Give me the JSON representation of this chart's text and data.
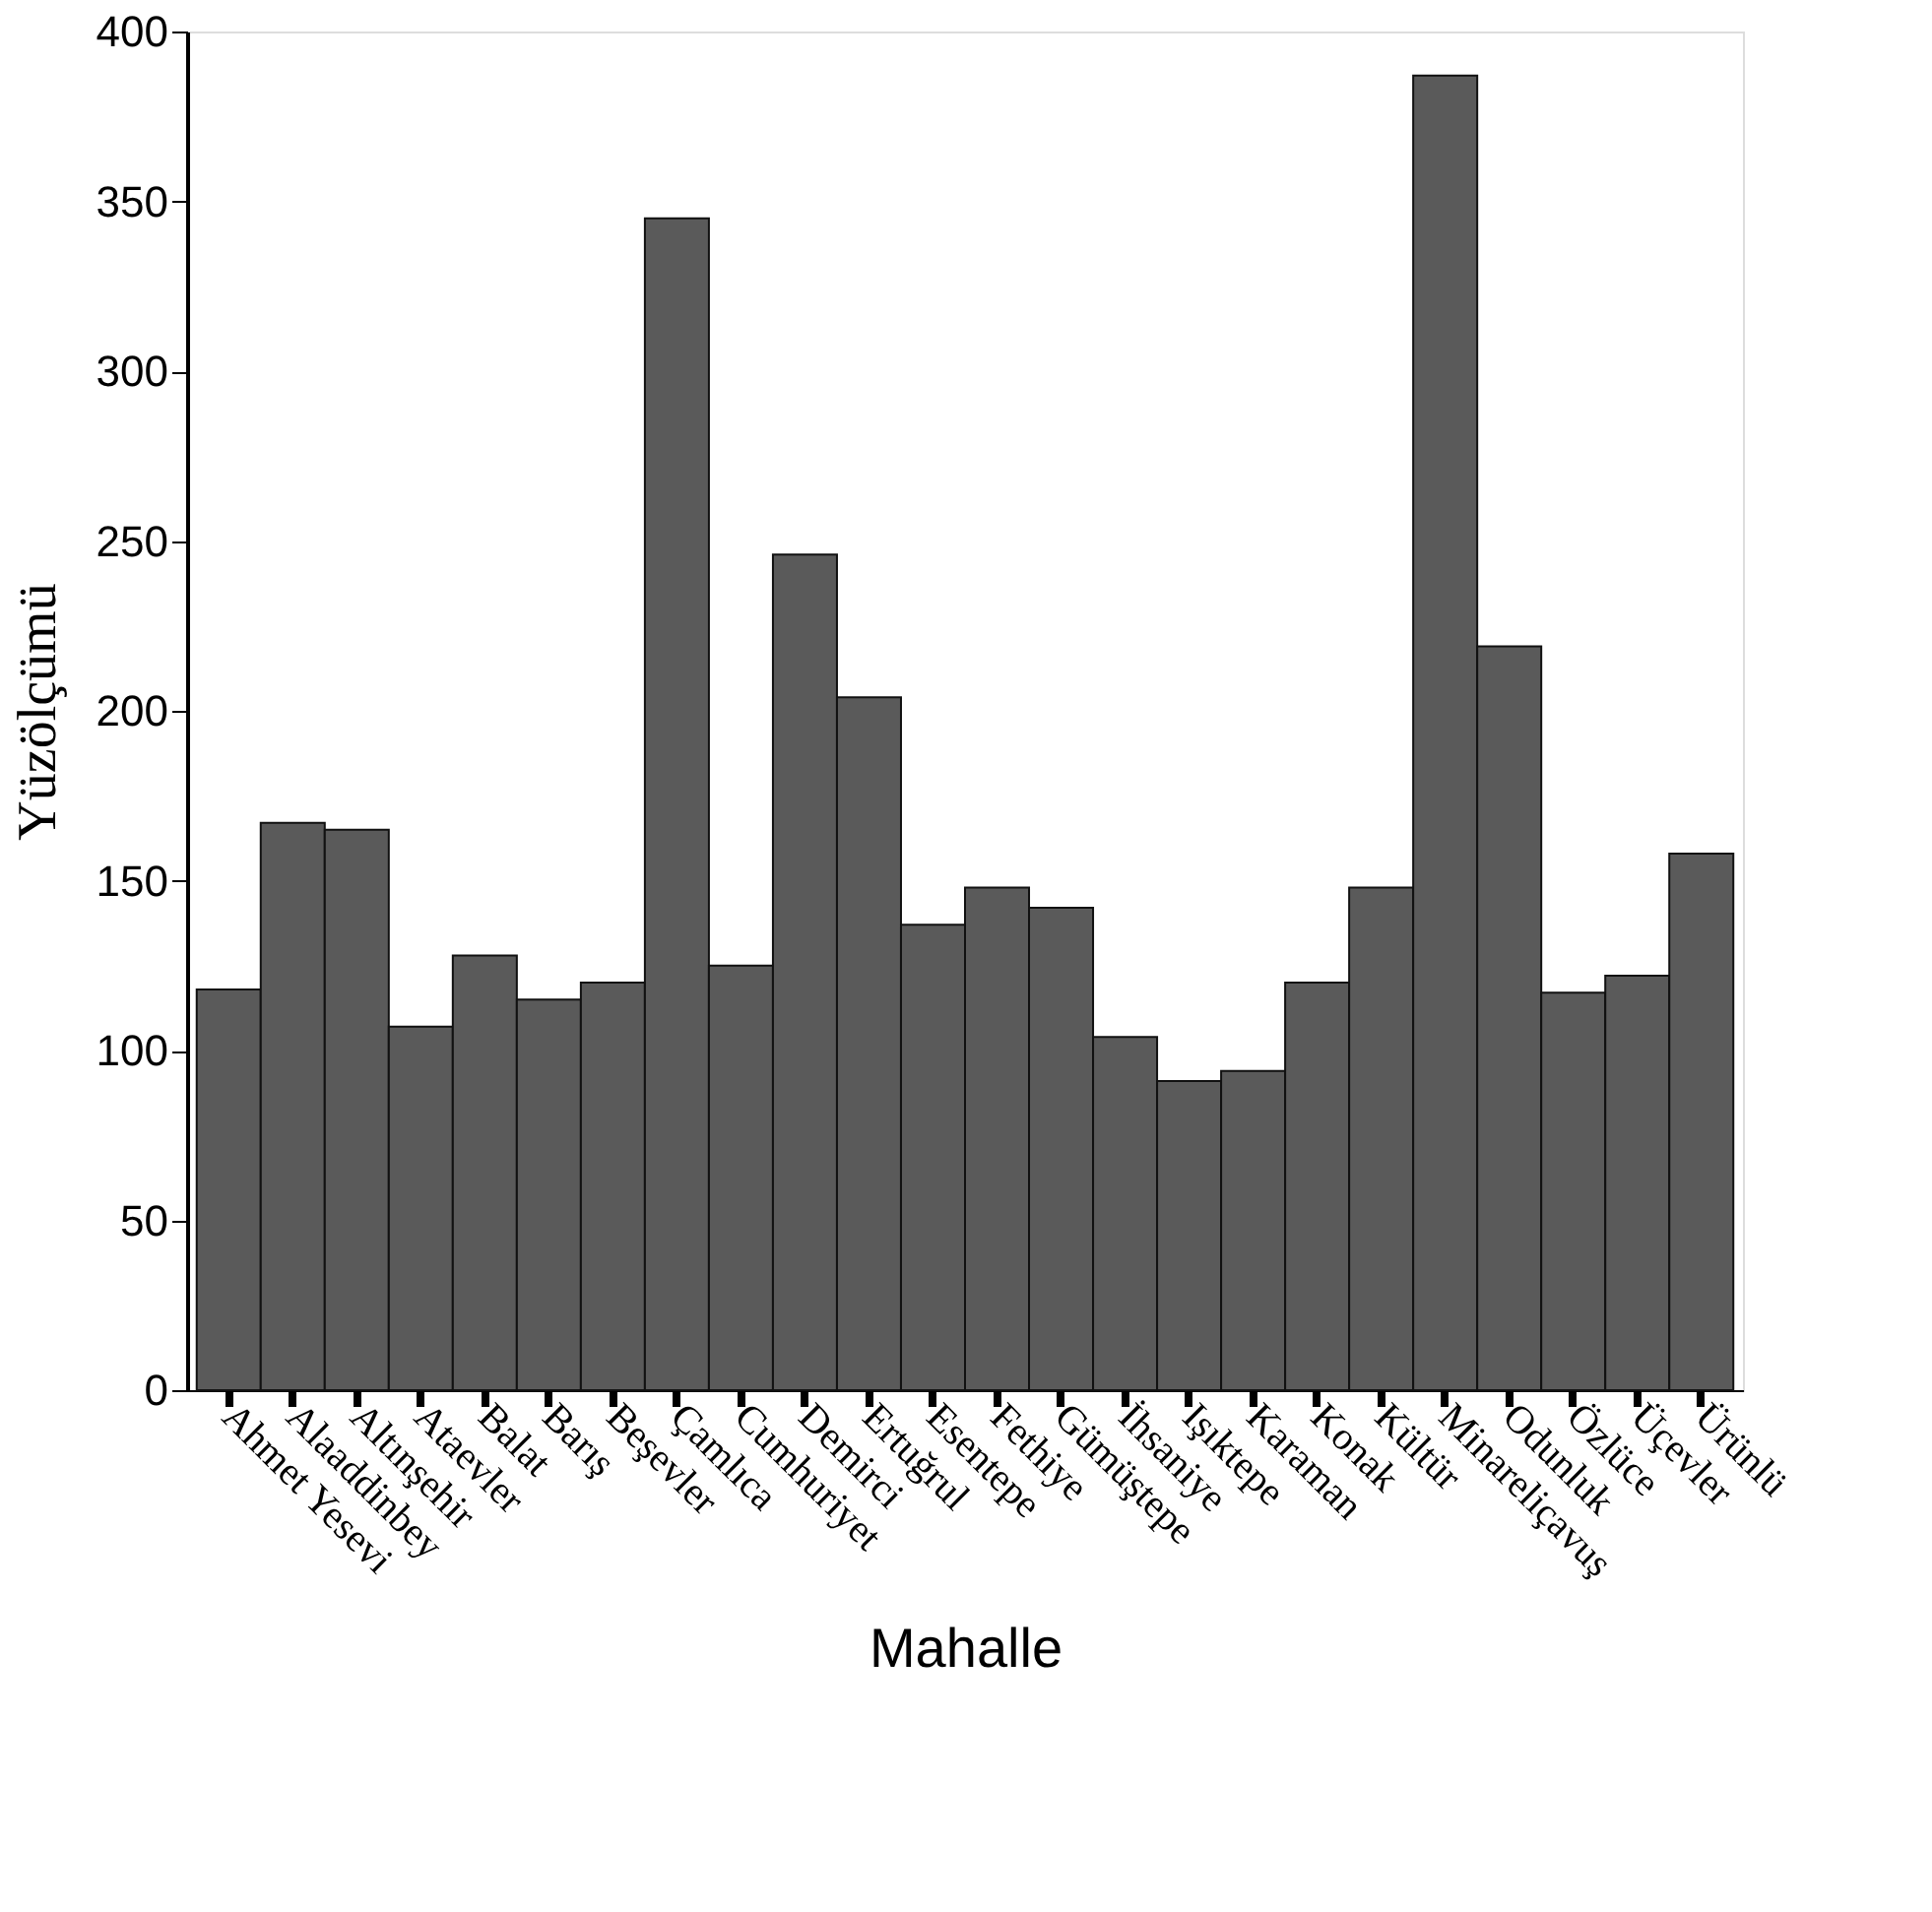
{
  "chart_data": {
    "type": "bar",
    "xlabel": "Mahalle",
    "ylabel": "Yüzölçümü",
    "categories": [
      "Ahmet Yesevi",
      "Alaaddinbey",
      "Altınşehir",
      "Ataevler",
      "Balat",
      "Barış",
      "Beşevler",
      "Çamlıca",
      "Cumhuriyet",
      "Demirci",
      "Ertuğrul",
      "Esentepe",
      "Fethiye",
      "Gümüştepe",
      "İhsaniye",
      "Işıktepe",
      "Karaman",
      "Konak",
      "Kültür",
      "Minareliçavuş",
      "Odunluk",
      "Özlüce",
      "Üçevler",
      "Ürünlü"
    ],
    "values": [
      118,
      167,
      165,
      107,
      128,
      115,
      120,
      345,
      125,
      246,
      204,
      137,
      148,
      142,
      104,
      91,
      94,
      120,
      148,
      387,
      219,
      117,
      122,
      158
    ],
    "color": "#5a5a5a",
    "ylim": [
      0,
      400
    ],
    "yticks": [
      0,
      50,
      100,
      150,
      200,
      250,
      300,
      350,
      400
    ],
    "grid": false
  }
}
